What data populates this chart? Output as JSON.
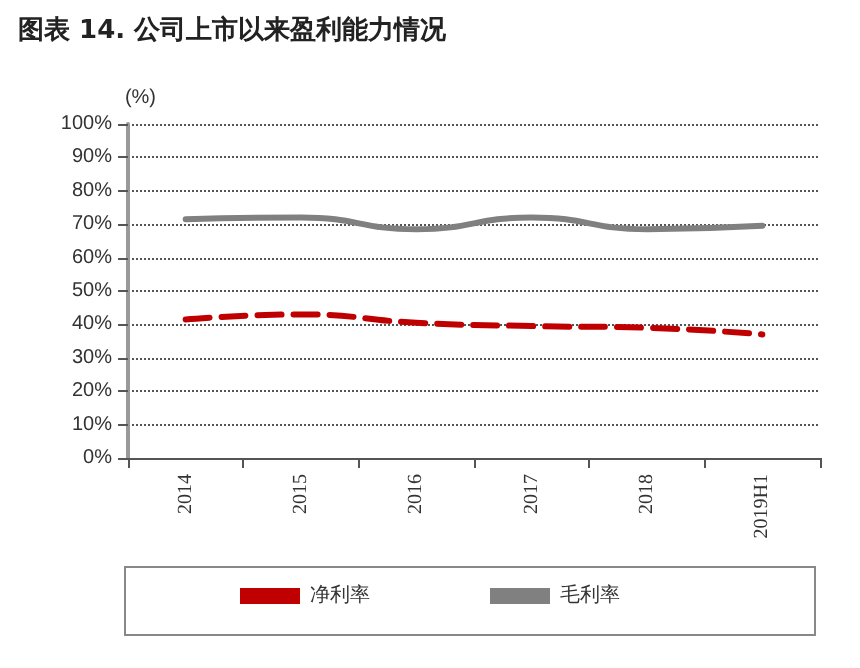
{
  "chart_data": {
    "type": "line",
    "title": "图表 14. 公司上市以来盈利能力情况",
    "ylabel": "(%)",
    "categories": [
      "2014",
      "2015",
      "2016",
      "2017",
      "2018",
      "2019H1"
    ],
    "series": [
      {
        "name": "净利率",
        "color": "#c00000",
        "line_style": "dashed",
        "values": [
          41.5,
          43,
          40.5,
          39.5,
          39,
          37
        ]
      },
      {
        "name": "毛利率",
        "color": "#808080",
        "line_style": "solid",
        "values": [
          71.5,
          72,
          68.5,
          72,
          68.5,
          69.5
        ]
      }
    ],
    "ylim": [
      0,
      100
    ],
    "yticks": [
      {
        "value": 0,
        "label": "0%"
      },
      {
        "value": 10,
        "label": "10%"
      },
      {
        "value": 20,
        "label": "20%"
      },
      {
        "value": 30,
        "label": "30%"
      },
      {
        "value": 40,
        "label": "40%"
      },
      {
        "value": 50,
        "label": "50%"
      },
      {
        "value": 60,
        "label": "60%"
      },
      {
        "value": 70,
        "label": "70%"
      },
      {
        "value": 80,
        "label": "80%"
      },
      {
        "value": 90,
        "label": "90%"
      },
      {
        "value": 100,
        "label": "100%"
      }
    ],
    "grid": "y",
    "legend": "bottom",
    "marker": "none"
  }
}
